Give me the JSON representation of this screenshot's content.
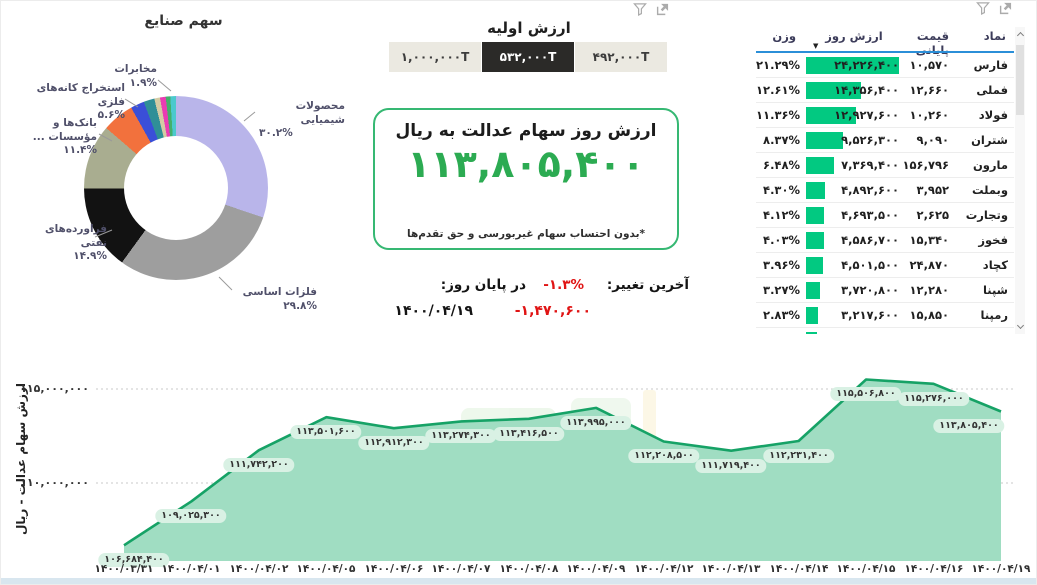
{
  "donut": {
    "note": "see chart_data[0]"
  },
  "initial_value": {
    "title": "ارزش اولیه",
    "options": [
      {
        "label": "۱,۰۰۰,۰۰۰T",
        "selected": false
      },
      {
        "label": "۵۳۲,۰۰۰T",
        "selected": true
      },
      {
        "label": "۴۹۲,۰۰۰T",
        "selected": false
      }
    ]
  },
  "value_box": {
    "title": "ارزش روز سهام عدالت به ریال",
    "value": "۱۱۳,۸۰۵,۴۰۰",
    "footnote": "*بدون احتساب سهام غیربورسی و حق تقدم‌ها"
  },
  "change": {
    "label": "آخرین تغییر:",
    "pct": "-۱.۳%",
    "when_label": "در پایان روز:",
    "amount": "-۱,۴۷۰,۶۰۰",
    "date": "۱۴۰۰/۰۴/۱۹"
  },
  "table": {
    "headers": {
      "symbol": "نماد",
      "close": "قیمت پایانی",
      "day_value": "ارزش روز",
      "weight": "وزن"
    },
    "sort_icon": "▼",
    "bar_color": "#02c981",
    "rows": [
      {
        "symbol": "فارس",
        "close": "۱۰,۵۷۰",
        "day_value": "۲۴,۲۲۶,۴۰۰",
        "value_num": 24226400,
        "weight": "۲۱.۲۹%"
      },
      {
        "symbol": "فملی",
        "close": "۱۲,۶۶۰",
        "day_value": "۱۴,۳۵۶,۴۰۰",
        "value_num": 14356400,
        "weight": "۱۲.۶۱%"
      },
      {
        "symbol": "فولاد",
        "close": "۱۰,۲۶۰",
        "day_value": "۱۲,۹۲۷,۶۰۰",
        "value_num": 12927600,
        "weight": "۱۱.۳۶%"
      },
      {
        "symbol": "شتران",
        "close": "۹,۰۹۰",
        "day_value": "۹,۵۲۶,۳۰۰",
        "value_num": 9526300,
        "weight": "۸.۳۷%"
      },
      {
        "symbol": "مارون",
        "close": "۱۵۶,۷۹۶",
        "day_value": "۷,۳۶۹,۴۰۰",
        "value_num": 7369400,
        "weight": "۶.۴۸%"
      },
      {
        "symbol": "وبملت",
        "close": "۳,۹۵۲",
        "day_value": "۴,۸۹۲,۶۰۰",
        "value_num": 4892600,
        "weight": "۴.۳۰%"
      },
      {
        "symbol": "وتجارت",
        "close": "۲,۶۲۵",
        "day_value": "۴,۶۹۳,۵۰۰",
        "value_num": 4693500,
        "weight": "۴.۱۲%"
      },
      {
        "symbol": "فخوز",
        "close": "۱۵,۳۴۰",
        "day_value": "۴,۵۸۶,۷۰۰",
        "value_num": 4586700,
        "weight": "۴.۰۳%"
      },
      {
        "symbol": "کچاد",
        "close": "۲۴,۸۷۰",
        "day_value": "۴,۵۰۱,۵۰۰",
        "value_num": 4501500,
        "weight": "۳.۹۶%"
      },
      {
        "symbol": "شپنا",
        "close": "۱۲,۲۸۰",
        "day_value": "۳,۷۲۰,۸۰۰",
        "value_num": 3720800,
        "weight": "۳.۲۷%"
      },
      {
        "symbol": "رمپنا",
        "close": "۱۵,۸۵۰",
        "day_value": "۳,۲۱۷,۶۰۰",
        "value_num": 3217600,
        "weight": "۲.۸۳%"
      }
    ]
  },
  "icons": {
    "filter": "funnel-icon",
    "focus": "focus-mode-icon",
    "scroll_up": "chevron-up",
    "scroll_down": "chevron-down"
  },
  "colors": {
    "accent_green": "#2cab52",
    "bar_green": "#02c981",
    "line_green": "#16a266",
    "area_fill": "#a0ddc2",
    "negative_red": "#e01414",
    "sort_underline_blue": "#2b8fd8",
    "selected_button_bg": "#2b2a28",
    "button_bg": "#ebe9e1"
  },
  "chart_data": [
    {
      "type": "pie",
      "title": "سهم صنایع",
      "legend_position": "callouts",
      "slices": [
        {
          "label": "محصولات شیمیایی",
          "pct": 30.2,
          "pct_label": "۳۰.۲%",
          "color": "#b9b5ea"
        },
        {
          "label": "فلزات اساسی",
          "pct": 29.8,
          "pct_label": "۲۹.۸%",
          "color": "#9e9e9e"
        },
        {
          "label": "فراورده‌های نفتی",
          "pct": 14.9,
          "pct_label": "۱۴.۹%",
          "color": "#121212"
        },
        {
          "label": "بانک‌ها و مؤسسات ...",
          "pct": 11.4,
          "pct_label": "۱۱.۴%",
          "color": "#a9ad90"
        },
        {
          "label": "استخراج کانه‌های فلزی",
          "pct": 5.6,
          "pct_label": "۵.۶%",
          "color": "#f2713d"
        },
        {
          "label": "",
          "pct": 2.4,
          "pct_label": "",
          "color": "#3a4fd8"
        },
        {
          "label": "مخابرات",
          "pct": 1.9,
          "pct_label": "۱.۹%",
          "color": "#2f8f97"
        },
        {
          "label": "",
          "pct": 1.0,
          "pct_label": "",
          "color": "#d4cba4"
        },
        {
          "label": "",
          "pct": 1.0,
          "pct_label": "",
          "color": "#ea3cb3"
        },
        {
          "label": "",
          "pct": 0.8,
          "pct_label": "",
          "color": "#43b06b"
        },
        {
          "label": "",
          "pct": 1.0,
          "pct_label": "",
          "color": "#4cc9cd"
        }
      ]
    },
    {
      "type": "area",
      "y_axis_title": "ارزش سهام عدالت - ریال",
      "grid": "dotted-horizontal",
      "ylim": [
        105850000,
        115800000
      ],
      "y_ticks": [
        {
          "label": "۱۱۵,۰۰۰,۰۰۰",
          "value": 115000000
        },
        {
          "label": "۱۱۰,۰۰۰,۰۰۰",
          "value": 110000000
        }
      ],
      "x": [
        "۱۴۰۰/۰۳/۳۱",
        "۱۴۰۰/۰۴/۰۱",
        "۱۴۰۰/۰۴/۰۲",
        "۱۴۰۰/۰۴/۰۵",
        "۱۴۰۰/۰۴/۰۶",
        "۱۴۰۰/۰۴/۰۷",
        "۱۴۰۰/۰۴/۰۸",
        "۱۴۰۰/۰۴/۰۹",
        "۱۴۰۰/۰۴/۱۲",
        "۱۴۰۰/۰۴/۱۳",
        "۱۴۰۰/۰۴/۱۴",
        "۱۴۰۰/۰۴/۱۵",
        "۱۴۰۰/۰۴/۱۶",
        "۱۴۰۰/۰۴/۱۹"
      ],
      "values": [
        106684400,
        109025300,
        111742200,
        113501600,
        112912300,
        113274300,
        113416500,
        113995000,
        112208500,
        111719400,
        112231400,
        115506800,
        115276000,
        113805400
      ],
      "point_labels": [
        "۱۰۶,۶۸۴,۴۰۰",
        "۱۰۹,۰۲۵,۳۰۰",
        "۱۱۱,۷۴۲,۲۰۰",
        "۱۱۳,۵۰۱,۶۰۰",
        "۱۱۲,۹۱۲,۳۰۰",
        "۱۱۳,۲۷۴,۳۰۰",
        "۱۱۳,۴۱۶,۵۰۰",
        "۱۱۳,۹۹۵,۰۰۰",
        "۱۱۲,۲۰۸,۵۰۰",
        "۱۱۱,۷۱۹,۴۰۰",
        "۱۱۲,۲۳۱,۴۰۰",
        "۱۱۵,۵۰۶,۸۰۰",
        "۱۱۵,۲۷۶,۰۰۰",
        "۱۱۳,۸۰۵,۴۰۰"
      ]
    }
  ]
}
